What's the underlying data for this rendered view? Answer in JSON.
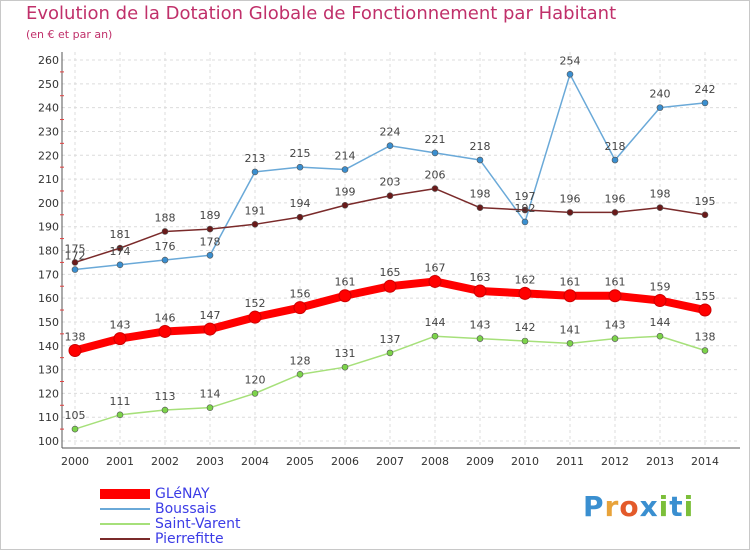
{
  "header": {
    "title": "Evolution de la Dotation Globale de Fonctionnement par Habitant",
    "subtitle": "(en € et par an)"
  },
  "brand": {
    "text": "Proxiti",
    "colors": [
      "#3a8fd0",
      "#e8a33a",
      "#e35a2a",
      "#3a8fd0",
      "#7cbf3a",
      "#3a8fd0",
      "#7cbf3a"
    ]
  },
  "chart_data": {
    "type": "line",
    "x": [
      "2000",
      "2001",
      "2002",
      "2003",
      "2004",
      "2005",
      "2006",
      "2007",
      "2008",
      "2009",
      "2010",
      "2011",
      "2012",
      "2013",
      "2014"
    ],
    "ylim": [
      100,
      260
    ],
    "y_ticks": [
      "100",
      "110",
      "120",
      "130",
      "140",
      "150",
      "160",
      "170",
      "180",
      "190",
      "200",
      "210",
      "220",
      "230",
      "240",
      "250",
      "260"
    ],
    "grid": true,
    "legend_position": "bottom-left",
    "series": [
      {
        "name": "GLéNAY",
        "color": "#ff0000",
        "marker": "#ff0000",
        "values": [
          138,
          143,
          146,
          147,
          152,
          156,
          161,
          165,
          167,
          163,
          162,
          161,
          161,
          159,
          155
        ]
      },
      {
        "name": "Boussais",
        "color": "#6aa9d8",
        "marker": "#3a8fd0",
        "values": [
          172,
          174,
          176,
          178,
          213,
          215,
          214,
          224,
          221,
          218,
          192,
          254,
          218,
          240,
          242
        ]
      },
      {
        "name": "Saint-Varent",
        "color": "#a6e07a",
        "marker": "#7cd44a",
        "values": [
          105,
          111,
          113,
          114,
          120,
          128,
          131,
          137,
          144,
          143,
          142,
          141,
          143,
          144,
          138
        ]
      },
      {
        "name": "Pierrefitte",
        "color": "#7a2a2a",
        "marker": "#6a1a1a",
        "values": [
          175,
          181,
          188,
          189,
          191,
          194,
          199,
          203,
          206,
          198,
          197,
          196,
          196,
          198,
          195
        ]
      }
    ],
    "data_labels": {
      "GLéNAY": [
        "138",
        "143",
        "146",
        "147",
        "152",
        "156",
        "161",
        "165",
        "167",
        "163",
        "162",
        "161",
        "161",
        "159",
        "155"
      ],
      "Boussais": [
        "172",
        "174",
        "176",
        "178",
        "213",
        "215",
        "214",
        "224",
        "221",
        "218",
        "192",
        "254",
        "218",
        "240",
        "242"
      ],
      "Saint-Varent": [
        "105",
        "111",
        "113",
        "114",
        "120",
        "128",
        "131",
        "137",
        "144",
        "143",
        "142",
        "141",
        "143",
        "144",
        "138"
      ],
      "Pierrefitte": [
        "175",
        "181",
        "188",
        "189",
        "191",
        "194",
        "199",
        "203",
        "206",
        "198",
        "197",
        "196",
        "196",
        "198",
        "195"
      ]
    }
  }
}
